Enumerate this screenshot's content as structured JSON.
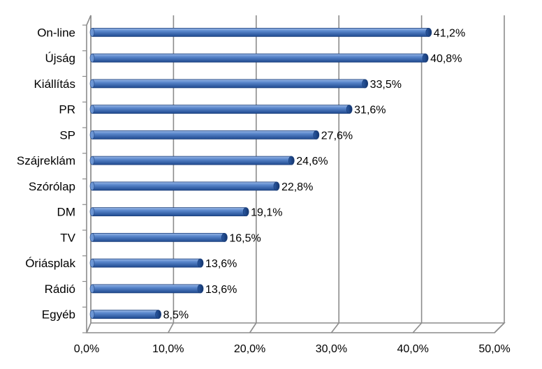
{
  "chart_data": {
    "type": "bar",
    "orientation": "horizontal",
    "categories": [
      "On-line",
      "Újság",
      "Kiállítás",
      "PR",
      "SP",
      "Szájreklám",
      "Szórólap",
      "DM",
      "TV",
      "Óriásplak",
      "Rádió",
      "Egyéb"
    ],
    "values": [
      41.2,
      40.8,
      33.5,
      31.6,
      27.6,
      24.6,
      22.8,
      19.1,
      16.5,
      13.6,
      13.6,
      8.5
    ],
    "value_labels": [
      "41,2%",
      "40,8%",
      "33,5%",
      "31,6%",
      "27,6%",
      "24,6%",
      "22,8%",
      "19,1%",
      "16,5%",
      "13,6%",
      "13,6%",
      "8,5%"
    ],
    "x_ticks": [
      "0,0%",
      "10,0%",
      "20,0%",
      "30,0%",
      "40,0%",
      "50,0%"
    ],
    "xlim": [
      0,
      50
    ],
    "title": "",
    "xlabel": "",
    "ylabel": "",
    "grid": true,
    "legend": "none",
    "bar_color": "#4f81bd"
  }
}
